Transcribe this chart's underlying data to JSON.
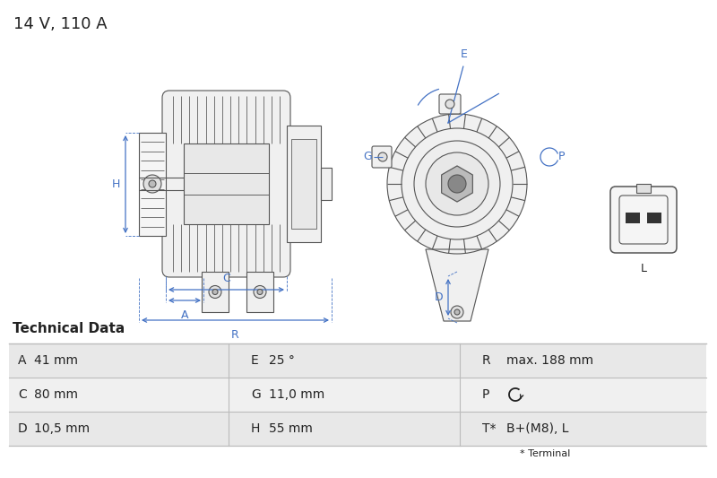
{
  "title": "14 V, 110 A",
  "title_fontsize": 13,
  "tech_data_title": "Technical Data",
  "table_rows": [
    [
      "A",
      "41 mm",
      "E",
      "25 °",
      "R",
      "max. 188 mm"
    ],
    [
      "C",
      "80 mm",
      "G",
      "11,0 mm",
      "P",
      "↺"
    ],
    [
      "D",
      "10,5 mm",
      "H",
      "55 mm",
      "T*",
      "B+(M8), L"
    ]
  ],
  "footnote": "* Terminal",
  "dim_color": "#4472c4",
  "bg_color": "#ffffff",
  "table_row_bg1": "#e8e8e8",
  "table_row_bg2": "#f0f0f0",
  "draw_color": "#555555",
  "draw_lw": 0.8
}
